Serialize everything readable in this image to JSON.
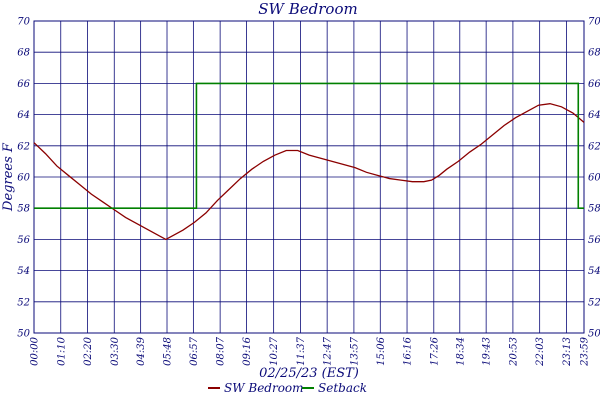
{
  "chart_data": {
    "type": "line",
    "title": "SW Bedroom",
    "xlabel": "02/25/23 (EST)",
    "ylabel": "Degrees F",
    "ylim": [
      50,
      70
    ],
    "y_ticks": [
      50,
      52,
      54,
      56,
      58,
      60,
      62,
      64,
      66,
      68,
      70
    ],
    "x_range_minutes": [
      0,
      1439
    ],
    "x_ticks": [
      {
        "label": "00:00",
        "minute": 0
      },
      {
        "label": "01:10",
        "minute": 70
      },
      {
        "label": "02:20",
        "minute": 140
      },
      {
        "label": "03:30",
        "minute": 210
      },
      {
        "label": "04:39",
        "minute": 279
      },
      {
        "label": "05:48",
        "minute": 348
      },
      {
        "label": "06:57",
        "minute": 417
      },
      {
        "label": "08:07",
        "minute": 487
      },
      {
        "label": "09:16",
        "minute": 556
      },
      {
        "label": "10:27",
        "minute": 627
      },
      {
        "label": "11:37",
        "minute": 697
      },
      {
        "label": "12:47",
        "minute": 767
      },
      {
        "label": "13:57",
        "minute": 837
      },
      {
        "label": "15:06",
        "minute": 906
      },
      {
        "label": "16:16",
        "minute": 976
      },
      {
        "label": "17:26",
        "minute": 1046
      },
      {
        "label": "18:34",
        "minute": 1114
      },
      {
        "label": "19:43",
        "minute": 1183
      },
      {
        "label": "20:53",
        "minute": 1253
      },
      {
        "label": "22:03",
        "minute": 1323
      },
      {
        "label": "23:13",
        "minute": 1393
      },
      {
        "label": "23:59",
        "minute": 1439
      }
    ],
    "grid": true,
    "legend_position": "bottom",
    "series": [
      {
        "name": "SW Bedroom",
        "color": "#8b0000",
        "points": [
          [
            0,
            62.2
          ],
          [
            30,
            61.5
          ],
          [
            60,
            60.7
          ],
          [
            90,
            60.1
          ],
          [
            120,
            59.5
          ],
          [
            150,
            58.9
          ],
          [
            180,
            58.4
          ],
          [
            210,
            57.9
          ],
          [
            240,
            57.4
          ],
          [
            270,
            57.0
          ],
          [
            300,
            56.6
          ],
          [
            330,
            56.2
          ],
          [
            345,
            56.0
          ],
          [
            360,
            56.2
          ],
          [
            390,
            56.6
          ],
          [
            420,
            57.1
          ],
          [
            450,
            57.7
          ],
          [
            480,
            58.5
          ],
          [
            510,
            59.2
          ],
          [
            540,
            59.9
          ],
          [
            570,
            60.5
          ],
          [
            600,
            61.0
          ],
          [
            630,
            61.4
          ],
          [
            660,
            61.7
          ],
          [
            690,
            61.7
          ],
          [
            720,
            61.4
          ],
          [
            750,
            61.2
          ],
          [
            780,
            61.0
          ],
          [
            810,
            60.8
          ],
          [
            840,
            60.6
          ],
          [
            870,
            60.3
          ],
          [
            900,
            60.1
          ],
          [
            930,
            59.9
          ],
          [
            960,
            59.8
          ],
          [
            990,
            59.7
          ],
          [
            1020,
            59.7
          ],
          [
            1040,
            59.8
          ],
          [
            1060,
            60.1
          ],
          [
            1080,
            60.5
          ],
          [
            1110,
            61.0
          ],
          [
            1140,
            61.6
          ],
          [
            1170,
            62.1
          ],
          [
            1200,
            62.7
          ],
          [
            1230,
            63.3
          ],
          [
            1260,
            63.8
          ],
          [
            1290,
            64.2
          ],
          [
            1320,
            64.6
          ],
          [
            1350,
            64.7
          ],
          [
            1380,
            64.5
          ],
          [
            1410,
            64.1
          ],
          [
            1439,
            63.5
          ]
        ]
      },
      {
        "name": "Setback",
        "color": "#008000",
        "points": [
          [
            0,
            58
          ],
          [
            425,
            58
          ],
          [
            425,
            66
          ],
          [
            1424,
            66
          ],
          [
            1424,
            58
          ],
          [
            1439,
            58
          ]
        ]
      }
    ]
  }
}
